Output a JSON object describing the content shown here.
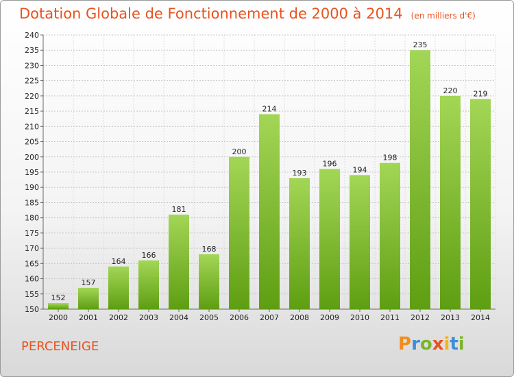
{
  "chart_data": {
    "type": "bar",
    "title": "Dotation Globale de Fonctionnement de 2000 à 2014",
    "unit": "(en milliers d'€)",
    "categories": [
      "2000",
      "2001",
      "2002",
      "2003",
      "2004",
      "2005",
      "2006",
      "2007",
      "2008",
      "2009",
      "2010",
      "2011",
      "2012",
      "2013",
      "2014"
    ],
    "values": [
      152,
      157,
      164,
      166,
      181,
      168,
      200,
      214,
      193,
      196,
      194,
      198,
      235,
      220,
      219
    ],
    "ylim": [
      150,
      240
    ],
    "yticks": [
      150,
      155,
      160,
      165,
      170,
      175,
      180,
      185,
      190,
      195,
      200,
      205,
      210,
      215,
      220,
      225,
      230,
      235,
      240
    ],
    "grid": true,
    "bar_color": "#7fbf2a"
  },
  "footer": {
    "place": "PERCENEIGE",
    "logo": "Proxiti"
  }
}
